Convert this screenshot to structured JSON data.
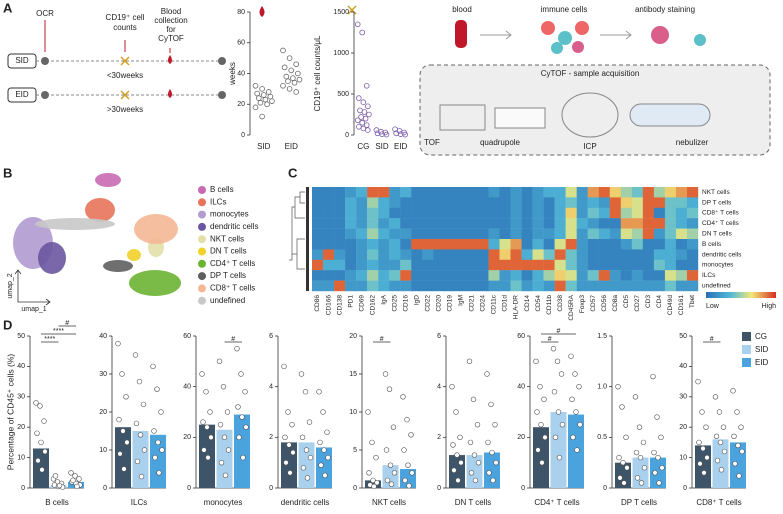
{
  "panels": [
    "A",
    "B",
    "C",
    "D"
  ],
  "timeline": {
    "ocr": "OCR",
    "counts": [
      "CD19⁺ cell",
      "counts"
    ],
    "blood": [
      "Blood",
      "collection",
      "for",
      "CyTOF"
    ],
    "sid": "SID",
    "eid": "EID",
    "early": "<30weeks",
    "late": ">30weeks"
  },
  "workflow": {
    "blood": "blood",
    "cells": "immune cells",
    "staining": "antibody staining",
    "box": "CyTOF - sample acquisition",
    "tof": "TOF",
    "quad": "quadrupole",
    "icp": "ICP",
    "neb": "nebulizer"
  },
  "panel_d_groups": [
    {
      "name": "CG",
      "color": "#3e5468"
    },
    {
      "name": "SID",
      "color": "#a9d0ec"
    },
    {
      "name": "EID",
      "color": "#4aa3dc"
    }
  ],
  "chart_data": [
    {
      "type": "strip",
      "ylabel": "weeks",
      "categories": [
        "SID",
        "EID"
      ],
      "color": "#666666",
      "ylim": [
        0,
        80
      ],
      "yticks": [
        0,
        20,
        40,
        60,
        80
      ],
      "points": [
        [
          32,
          30,
          28,
          27,
          26,
          25,
          24,
          23,
          22,
          21,
          20,
          18,
          12
        ],
        [
          55,
          50,
          46,
          44,
          42,
          40,
          38,
          37,
          36,
          35,
          34,
          32,
          30,
          28
        ]
      ]
    },
    {
      "type": "strip",
      "ylabel": "CD19⁺ cell counts/μL",
      "categories": [
        "CG",
        "SID",
        "EID"
      ],
      "color": "#7a5aa8",
      "ylim": [
        0,
        1500
      ],
      "yticks": [
        0,
        500,
        1000,
        1500
      ],
      "points": [
        [
          1350,
          1250,
          600,
          450,
          400,
          350,
          300,
          280,
          250,
          220,
          200,
          180,
          150,
          120,
          100,
          80,
          60
        ],
        [
          60,
          40,
          30,
          20,
          10,
          5
        ],
        [
          70,
          50,
          30,
          20,
          10,
          5
        ]
      ]
    },
    {
      "type": "embedding",
      "xlabel": "umap_1",
      "ylabel": "umap_2",
      "series": [
        {
          "name": "B cells",
          "color": "#c86ab3"
        },
        {
          "name": "ILCs",
          "color": "#e8735a"
        },
        {
          "name": "monocytes",
          "color": "#b19bd0"
        },
        {
          "name": "dendritic cells",
          "color": "#6b56a0"
        },
        {
          "name": "NKT cells",
          "color": "#e2e0a8"
        },
        {
          "name": "DN T cells",
          "color": "#f0d22a"
        },
        {
          "name": "CD4⁺ T cells",
          "color": "#6ab432"
        },
        {
          "name": "DP T cells",
          "color": "#5f5f5f"
        },
        {
          "name": "CD8⁺ T cells",
          "color": "#f4b795"
        },
        {
          "name": "undefined",
          "color": "#c8c8c8"
        }
      ]
    },
    {
      "type": "heatmap",
      "colorbar_labels": [
        "Low",
        "High"
      ],
      "columns": [
        "CD86",
        "CD166",
        "CD138",
        "PD1",
        "CD69",
        "CD162",
        "IgA",
        "CD25",
        "CD16",
        "IgD",
        "CD22",
        "CD20",
        "CD19",
        "IgM",
        "CD21",
        "CD24",
        "CD11c",
        "CD1d",
        "HLA-DR",
        "CD14",
        "CD54",
        "CD11b",
        "CD38",
        "CD45RA",
        "Foxp3",
        "CD57",
        "CD56",
        "CD8a",
        "CD5",
        "CD27",
        "CD3",
        "CD4",
        "CD49d",
        "CD161",
        "Tbet"
      ],
      "rows": [
        "NKT cells",
        "DP T cells",
        "CD8⁺ T cells",
        "CD4⁺ T cells",
        "DN T cells",
        "B cells",
        "dendritic cells",
        "monocytes",
        "ILCs",
        "undefined"
      ],
      "values": [
        [
          1,
          1,
          1,
          2,
          3,
          9,
          9,
          2,
          3,
          1,
          1,
          1,
          1,
          1,
          1,
          1,
          2,
          1,
          2,
          1,
          2,
          3,
          3,
          6,
          2,
          8,
          9,
          7,
          5,
          4,
          9,
          5,
          7,
          8,
          9
        ],
        [
          1,
          1,
          1,
          3,
          2,
          5,
          3,
          2,
          1,
          1,
          1,
          1,
          1,
          1,
          1,
          1,
          1,
          1,
          2,
          1,
          2,
          1,
          3,
          4,
          2,
          3,
          2,
          9,
          7,
          6,
          9,
          9,
          4,
          4,
          3
        ],
        [
          1,
          1,
          1,
          3,
          2,
          4,
          3,
          1,
          1,
          1,
          1,
          1,
          1,
          1,
          1,
          1,
          1,
          1,
          2,
          1,
          2,
          1,
          3,
          7,
          2,
          4,
          3,
          9,
          5,
          6,
          9,
          1,
          4,
          3,
          4
        ],
        [
          1,
          1,
          1,
          3,
          2,
          4,
          2,
          3,
          1,
          1,
          1,
          1,
          1,
          1,
          1,
          1,
          1,
          1,
          2,
          1,
          2,
          1,
          3,
          6,
          3,
          2,
          1,
          1,
          8,
          8,
          9,
          9,
          4,
          3,
          2
        ],
        [
          1,
          1,
          1,
          2,
          3,
          5,
          3,
          2,
          2,
          1,
          1,
          1,
          1,
          1,
          1,
          1,
          2,
          1,
          2,
          1,
          2,
          2,
          3,
          6,
          2,
          4,
          3,
          2,
          6,
          5,
          9,
          2,
          4,
          6,
          5
        ],
        [
          1,
          1,
          1,
          1,
          2,
          3,
          2,
          3,
          1,
          9,
          9,
          9,
          9,
          9,
          9,
          9,
          3,
          6,
          8,
          1,
          3,
          1,
          6,
          9,
          2,
          1,
          1,
          1,
          2,
          4,
          1,
          1,
          3,
          1,
          2
        ],
        [
          2,
          9,
          2,
          1,
          2,
          4,
          2,
          3,
          2,
          1,
          2,
          1,
          1,
          1,
          1,
          1,
          9,
          7,
          9,
          3,
          6,
          4,
          9,
          4,
          2,
          1,
          1,
          1,
          1,
          1,
          1,
          3,
          3,
          2,
          1
        ],
        [
          9,
          3,
          3,
          1,
          2,
          3,
          2,
          2,
          4,
          1,
          1,
          1,
          1,
          1,
          1,
          1,
          9,
          9,
          9,
          9,
          9,
          9,
          6,
          4,
          2,
          1,
          1,
          1,
          1,
          1,
          1,
          4,
          3,
          1,
          1
        ],
        [
          1,
          1,
          1,
          2,
          3,
          5,
          3,
          4,
          9,
          1,
          1,
          1,
          1,
          1,
          1,
          1,
          5,
          2,
          3,
          1,
          3,
          5,
          7,
          6,
          2,
          4,
          9,
          2,
          1,
          2,
          1,
          1,
          6,
          5,
          9
        ],
        [
          2,
          2,
          9,
          2,
          2,
          4,
          3,
          2,
          2,
          1,
          1,
          1,
          1,
          1,
          1,
          1,
          2,
          2,
          4,
          2,
          3,
          2,
          9,
          4,
          2,
          2,
          2,
          2,
          2,
          2,
          2,
          2,
          4,
          2,
          2
        ]
      ]
    },
    {
      "type": "bardot",
      "ylabel": "Percentage of CD45⁺ cells (%)",
      "xlabel": "B cells",
      "values": [
        13,
        1,
        2
      ],
      "ylim": [
        0,
        50
      ],
      "yticks": [
        0,
        10,
        20,
        30,
        40,
        50
      ],
      "points": [
        [
          28,
          27,
          22,
          18,
          15,
          12,
          9,
          6
        ],
        [
          3,
          2,
          1.5,
          1,
          0.5,
          0.3,
          4,
          0.8
        ],
        [
          5,
          4,
          3,
          2,
          1.5,
          1,
          2.5,
          0.5
        ]
      ],
      "annotations": [
        {
          "text": "****",
          "groups": [
            0,
            1
          ]
        },
        {
          "text": "****",
          "groups": [
            0,
            2
          ]
        },
        {
          "text": "#",
          "groups": [
            1,
            2
          ]
        }
      ]
    },
    {
      "type": "bardot",
      "xlabel": "ILCs",
      "values": [
        16,
        15,
        14
      ],
      "ylim": [
        0,
        40
      ],
      "yticks": [
        0,
        10,
        20,
        30,
        40
      ],
      "points": [
        [
          38,
          30,
          24,
          18,
          15,
          12,
          9,
          5
        ],
        [
          35,
          28,
          22,
          17,
          14,
          10,
          7,
          3
        ],
        [
          32,
          26,
          20,
          15,
          12,
          10,
          8,
          4
        ]
      ],
      "annotations": []
    },
    {
      "type": "bardot",
      "xlabel": "monocytes",
      "values": [
        25,
        23,
        29
      ],
      "ylim": [
        0,
        60
      ],
      "yticks": [
        0,
        20,
        40,
        60
      ],
      "points": [
        [
          45,
          38,
          30,
          26,
          24,
          20,
          15,
          12
        ],
        [
          50,
          40,
          30,
          25,
          20,
          15,
          10,
          5
        ],
        [
          55,
          45,
          38,
          32,
          28,
          24,
          20,
          12
        ]
      ],
      "annotations": [
        {
          "text": "#",
          "groups": [
            1,
            2
          ]
        }
      ]
    },
    {
      "type": "bardot",
      "xlabel": "dendritic cells",
      "values": [
        1.8,
        1.8,
        1.6
      ],
      "ylim": [
        0,
        6
      ],
      "yticks": [
        0,
        2,
        4,
        6
      ],
      "points": [
        [
          4.8,
          3,
          2.5,
          2,
          1.7,
          1.4,
          1,
          0.6
        ],
        [
          4.5,
          3.8,
          2.6,
          2,
          1.5,
          1.2,
          0.8,
          0.4
        ],
        [
          3.8,
          3,
          2.2,
          1.8,
          1.5,
          1.2,
          0.9,
          0.5
        ]
      ],
      "annotations": []
    },
    {
      "type": "bardot",
      "xlabel": "NKT cells",
      "values": [
        1,
        3,
        2.5
      ],
      "ylim": [
        0,
        20
      ],
      "yticks": [
        0,
        5,
        10,
        15,
        20
      ],
      "points": [
        [
          10,
          6,
          4,
          2,
          1,
          0.7,
          0.4,
          0.2
        ],
        [
          15,
          13,
          8,
          5,
          3,
          2,
          1,
          0.5
        ],
        [
          12,
          9,
          7,
          5,
          3,
          2,
          1,
          0.3
        ]
      ],
      "annotations": [
        {
          "text": "#",
          "groups": [
            0,
            1
          ]
        }
      ]
    },
    {
      "type": "bardot",
      "xlabel": "DN T cells",
      "values": [
        1.3,
        1.3,
        1.4
      ],
      "ylim": [
        0,
        6
      ],
      "yticks": [
        0,
        2,
        4,
        6
      ],
      "points": [
        [
          4,
          3,
          2,
          1.7,
          1.3,
          1,
          0.7,
          0.3
        ],
        [
          5,
          3.5,
          2.5,
          1.8,
          1.3,
          1,
          0.6,
          0.3
        ],
        [
          4.5,
          3.3,
          2.5,
          1.8,
          1.4,
          1,
          0.6,
          0.3
        ]
      ],
      "annotations": []
    },
    {
      "type": "bardot",
      "xlabel": "CD4⁺ T cells",
      "values": [
        24,
        30,
        29
      ],
      "ylim": [
        0,
        60
      ],
      "yticks": [
        0,
        20,
        40,
        60
      ],
      "points": [
        [
          50,
          40,
          35,
          30,
          25,
          20,
          15,
          10
        ],
        [
          55,
          50,
          45,
          38,
          30,
          25,
          20,
          12
        ],
        [
          52,
          45,
          40,
          35,
          30,
          25,
          20,
          15
        ]
      ],
      "annotations": [
        {
          "text": "#",
          "groups": [
            0,
            1
          ]
        },
        {
          "text": "#",
          "groups": [
            0,
            2
          ]
        }
      ]
    },
    {
      "type": "bardot",
      "xlabel": "DP T cells",
      "values": [
        0.25,
        0.3,
        0.3
      ],
      "ylim": [
        0,
        1.5
      ],
      "yticks": [
        0,
        0.5,
        {
          "value": 1,
          "label": "1.0"
        },
        1.5
      ],
      "points": [
        [
          1,
          0.8,
          0.5,
          0.3,
          0.25,
          0.2,
          0.1,
          0.05
        ],
        [
          0.9,
          0.6,
          0.45,
          0.35,
          0.3,
          0.2,
          0.1,
          0.05
        ],
        [
          1.1,
          0.7,
          0.5,
          0.35,
          0.3,
          0.2,
          0.15,
          0.05
        ]
      ],
      "annotations": []
    },
    {
      "type": "bardot",
      "xlabel": "CD8⁺ T cells",
      "values": [
        14,
        16,
        15
      ],
      "ylim": [
        0,
        50
      ],
      "yticks": [
        0,
        10,
        20,
        30,
        40,
        50
      ],
      "points": [
        [
          35,
          25,
          20,
          15,
          13,
          10,
          8,
          5
        ],
        [
          30,
          25,
          20,
          17,
          15,
          12,
          9,
          6
        ],
        [
          32,
          25,
          20,
          17,
          14,
          12,
          8,
          4
        ]
      ],
      "annotations": [
        {
          "text": "#",
          "groups": [
            0,
            1
          ]
        }
      ]
    }
  ]
}
